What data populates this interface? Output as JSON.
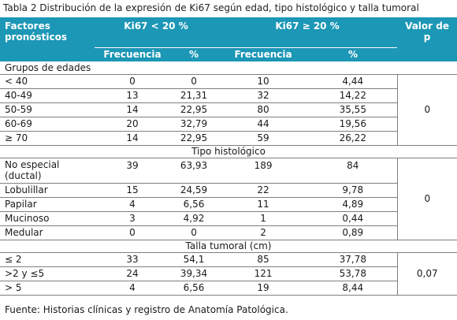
{
  "caption": "Tabla 2 Distribución de la expresión de Ki67 según edad, tipo histológico y talla tumoral",
  "header": {
    "factor": "Factores pronósticos",
    "ki67_low": "Ki67 < 20 %",
    "ki67_high": "Ki67 ≥ 20 %",
    "pvalue": "Valor de p",
    "freq_low": "Frecuencia",
    "pct_low": "%",
    "freq_high": "Frecuencia",
    "pct_high": "%"
  },
  "sections": [
    {
      "title": "Grupos de edades",
      "pvalue": "0",
      "rows": [
        {
          "label": "< 40",
          "f1": "0",
          "p1": "0",
          "f2": "10",
          "p2": "4,44"
        },
        {
          "label": "40-49",
          "f1": "13",
          "p1": "21,31",
          "f2": "32",
          "p2": "14,22"
        },
        {
          "label": "50-59",
          "f1": "14",
          "p1": "22,95",
          "f2": "80",
          "p2": "35,55"
        },
        {
          "label": "60-69",
          "f1": "20",
          "p1": "32,79",
          "f2": "44",
          "p2": "19,56"
        },
        {
          "label": "≥ 70",
          "f1": "14",
          "p1": "22,95",
          "f2": "59",
          "p2": "26,22"
        }
      ]
    },
    {
      "title": "Tipo histológico",
      "pvalue": "0",
      "rows": [
        {
          "label": "No especial (ductal)",
          "f1": "39",
          "p1": "63,93",
          "f2": "189",
          "p2": "84"
        },
        {
          "label": "Lobulillar",
          "f1": "15",
          "p1": "24,59",
          "f2": "22",
          "p2": "9,78"
        },
        {
          "label": "Papilar",
          "f1": "4",
          "p1": "6,56",
          "f2": "11",
          "p2": "4,89"
        },
        {
          "label": "Mucinoso",
          "f1": "3",
          "p1": "4,92",
          "f2": "1",
          "p2": "0,44"
        },
        {
          "label": "Medular",
          "f1": "0",
          "p1": "0",
          "f2": "2",
          "p2": "0,89"
        }
      ]
    },
    {
      "title": "Talla tumoral (cm)",
      "pvalue": "0,07",
      "rows": [
        {
          "label": "≤ 2",
          "f1": "33",
          "p1": "54,1",
          "f2": "85",
          "p2": "37,78"
        },
        {
          "label": ">2 y ≤5",
          "f1": "24",
          "p1": "39,34",
          "f2": "121",
          "p2": "53,78"
        },
        {
          "label": "> 5",
          "f1": "4",
          "p1": "6,56",
          "f2": "19",
          "p2": "8,44"
        }
      ]
    }
  ],
  "footer": "Fuente: Historias clínicas y registro de Anatomía Patológica."
}
